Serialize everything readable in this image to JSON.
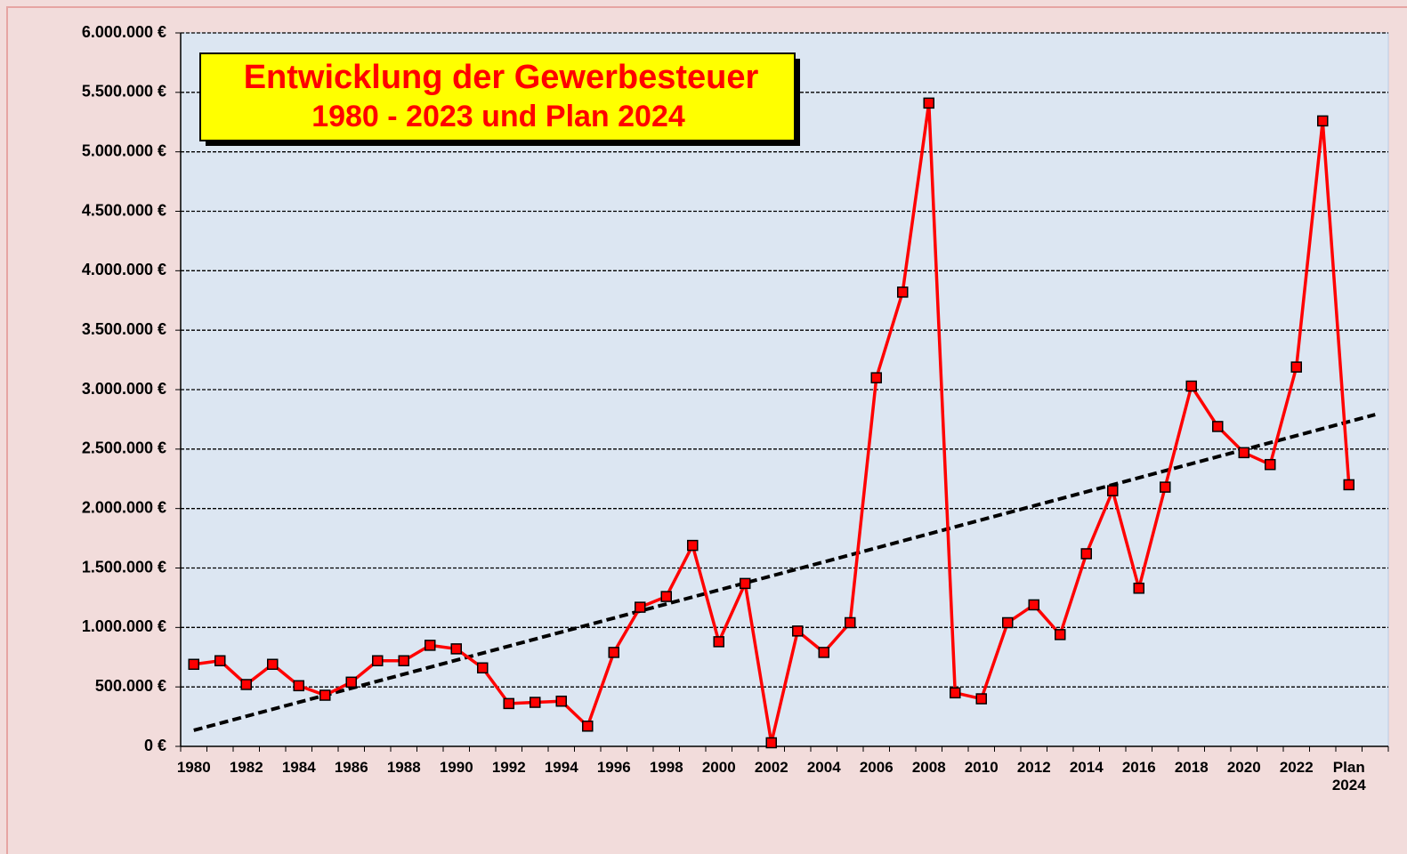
{
  "chart_data": {
    "type": "line",
    "title": [
      "Entwicklung der Gewerbesteuer",
      "1980 - 2023  und Plan 2024"
    ],
    "categories": [
      "1980",
      null,
      "1982",
      null,
      "1984",
      null,
      "1986",
      null,
      "1988",
      null,
      "1990",
      null,
      "1992",
      null,
      "1994",
      null,
      "1996",
      null,
      "1998",
      null,
      "2000",
      null,
      "2002",
      null,
      "2004",
      null,
      "2006",
      null,
      "2008",
      null,
      "2010",
      null,
      "2012",
      null,
      "2014",
      null,
      "2016",
      null,
      "2018",
      null,
      "2020",
      null,
      "2022",
      null,
      "Plan 2024",
      null
    ],
    "series": [
      {
        "color": "#ff0000",
        "values": [
          690000,
          720000,
          520000,
          690000,
          510000,
          430000,
          540000,
          720000,
          720000,
          850000,
          820000,
          660000,
          360000,
          370000,
          380000,
          170000,
          790000,
          1170000,
          1260000,
          1690000,
          880000,
          1370000,
          30000,
          970000,
          790000,
          1040000,
          3100000,
          3820000,
          5410000,
          450000,
          400000,
          1040000,
          1190000,
          940000,
          1620000,
          2150000,
          1330000,
          2180000,
          3030000,
          2690000,
          2470000,
          2370000,
          3190000,
          5260000,
          2200000,
          null
        ]
      }
    ],
    "trend": {
      "start": 135000,
      "end": 2790000,
      "color": "#000000"
    },
    "ylim": [
      0,
      6000000
    ],
    "yticks": [
      {
        "value": 0,
        "label": "0 €"
      },
      {
        "value": 500000,
        "label": "500.000 €"
      },
      {
        "value": 1000000,
        "label": "1.000.000 €"
      },
      {
        "value": 1500000,
        "label": "1.500.000 €"
      },
      {
        "value": 2000000,
        "label": "2.000.000 €"
      },
      {
        "value": 2500000,
        "label": "2.500.000 €"
      },
      {
        "value": 3000000,
        "label": "3.000.000 €"
      },
      {
        "value": 3500000,
        "label": "3.500.000 €"
      },
      {
        "value": 4000000,
        "label": "4.000.000 €"
      },
      {
        "value": 4500000,
        "label": "4.500.000 €"
      },
      {
        "value": 5000000,
        "label": "5.000.000 €"
      },
      {
        "value": 5500000,
        "label": "5.500.000 €"
      },
      {
        "value": 6000000,
        "label": "6.000.000 €"
      }
    ],
    "grid": true
  }
}
